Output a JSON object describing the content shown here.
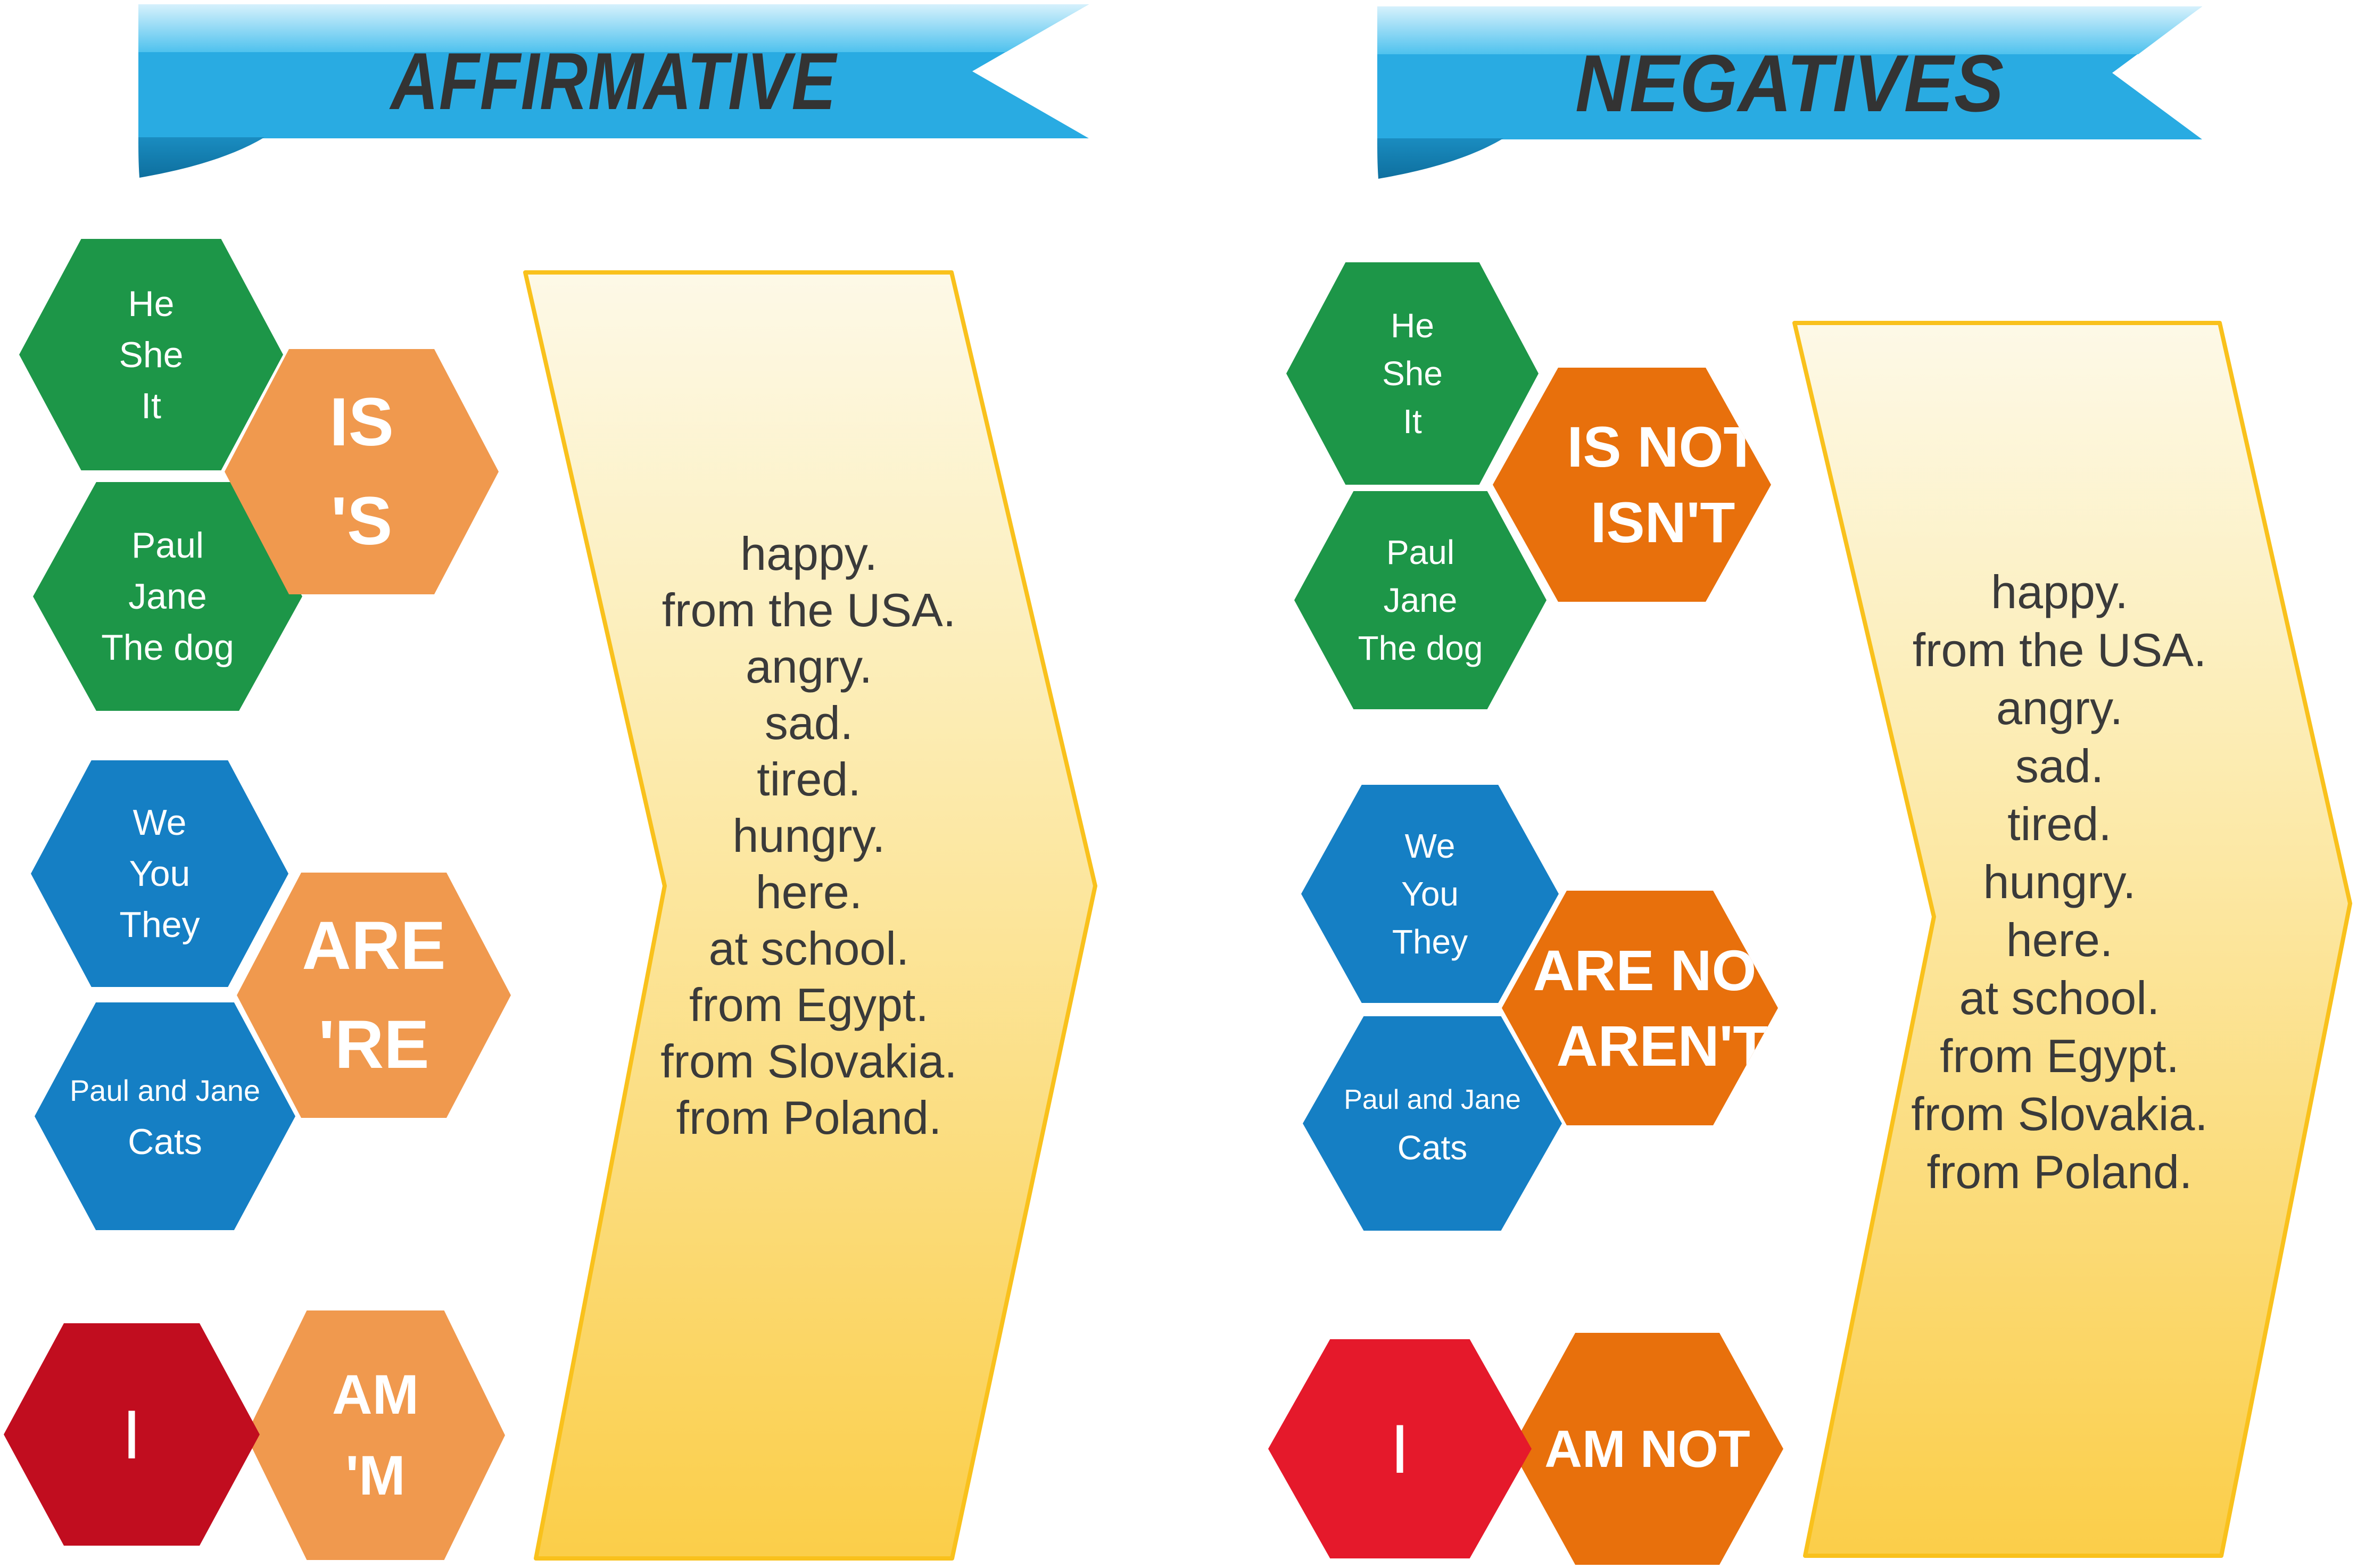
{
  "affirmative": {
    "banner_label": "AFFIRMATIVE",
    "is_group": {
      "subjects_1": [
        "He",
        "She",
        "It"
      ],
      "subjects_2": [
        "Paul",
        "Jane",
        "The dog"
      ],
      "verb": [
        "IS",
        "'S"
      ]
    },
    "are_group": {
      "subjects_1": [
        "We",
        "You",
        "They"
      ],
      "subjects_2": [
        "Paul and Jane",
        "Cats"
      ],
      "verb": [
        "ARE",
        "'RE"
      ]
    },
    "am_group": {
      "subject": [
        "I"
      ],
      "verb": [
        "AM",
        "'M"
      ]
    },
    "complements": [
      "happy.",
      "from the USA.",
      "angry.",
      "sad.",
      "tired.",
      "hungry.",
      "here.",
      "at school.",
      "from Egypt.",
      "from Slovakia.",
      "from Poland."
    ]
  },
  "negatives": {
    "banner_label": "NEGATIVES",
    "is_group": {
      "subjects_1": [
        "He",
        "She",
        "It"
      ],
      "subjects_2": [
        "Paul",
        "Jane",
        "The dog"
      ],
      "verb": [
        "IS NOT",
        "ISN'T"
      ]
    },
    "are_group": {
      "subjects_1": [
        "We",
        "You",
        "They"
      ],
      "subjects_2": [
        "Paul and Jane",
        "Cats"
      ],
      "verb": [
        "ARE NOT",
        "AREN'T"
      ]
    },
    "am_group": {
      "subject": [
        "I"
      ],
      "verb": [
        "AM NOT"
      ]
    },
    "complements": [
      "happy.",
      "from the USA.",
      "angry.",
      "sad.",
      "tired.",
      "hungry.",
      "here.",
      "at school.",
      "from Egypt.",
      "from Slovakia.",
      "from Poland."
    ]
  },
  "colors": {
    "green_subject": "#1d9648",
    "blue_subject": "#157fc4",
    "red_subject_affirmative": "#c10d1f",
    "red_subject_negative": "#e5192b",
    "orange_verb_affirmative": "#f0994e",
    "orange_verb_negative": "#e8700c",
    "banner_blue": "#29abe2",
    "banner_fold_blue": "#0e6f9e",
    "yellow_panel_border": "#f9c11c",
    "yellow_panel_fill": "#fbd45f",
    "text_dark": "#3a3a3a",
    "text_white": "#ffffff"
  }
}
